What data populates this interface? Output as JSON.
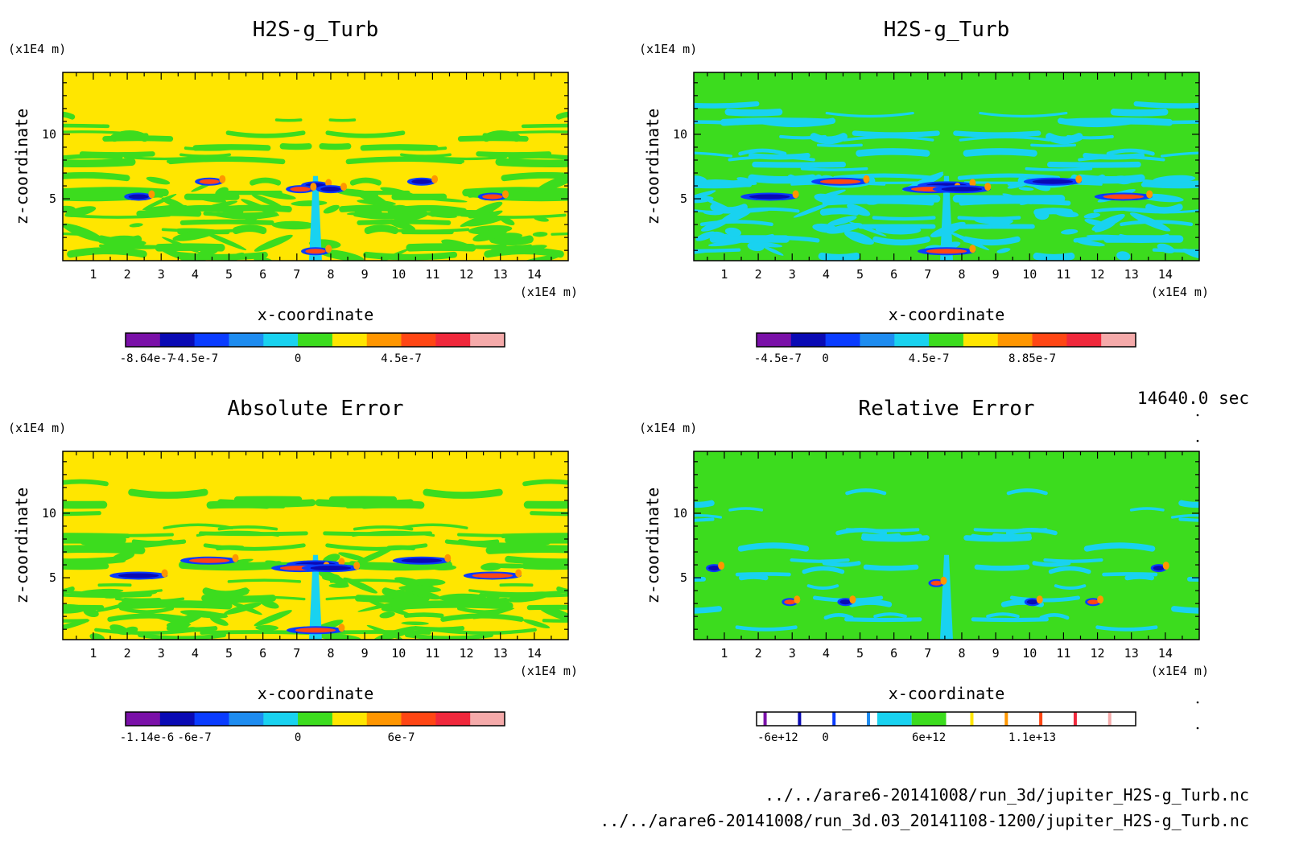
{
  "colors": {
    "palette": [
      "#7a10a8",
      "#0a0ab4",
      "#0a3cff",
      "#1e8cf0",
      "#19d2f0",
      "#3cdc1e",
      "#ffe600",
      "#ff9600",
      "#ff4614",
      "#f0283c",
      "#f5aaaa"
    ],
    "background_field": {
      "H2S-g_Turb (A)": "#ffe600",
      "H2S-g_Turb (B)": "#3cdc1e",
      "Absolute Error": "#ffe600",
      "Relative Error": "#3cdc1e"
    }
  },
  "time_label": "14640.0 sec",
  "files": [
    "../../arare6-20141008/run_3d/jupiter_H2S-g_Turb.nc",
    "../../arare6-20141008/run_3d.03_20141108-1200/jupiter_H2S-g_Turb.nc"
  ],
  "chart_data": [
    {
      "type": "heatmap",
      "title": "H2S-g_Turb",
      "xlabel": "x-coordinate",
      "ylabel": "z-coordinate",
      "x_unit": "(x1E4 m)",
      "y_unit": "(x1E4 m)",
      "xlim": [
        0.1,
        15
      ],
      "ylim": [
        0.2,
        14.8
      ],
      "x_ticks": [
        "1",
        "2",
        "3",
        "4",
        "5",
        "6",
        "7",
        "8",
        "9",
        "10",
        "11",
        "12",
        "13",
        "14"
      ],
      "y_ticks": [
        "5",
        "10"
      ],
      "colorbar": {
        "type": "filled",
        "levels": 11,
        "tick_labels": [
          "-8.64e-7",
          "-4.5e-7",
          "0",
          "4.5e-7"
        ]
      }
    },
    {
      "type": "heatmap",
      "title": "H2S-g_Turb",
      "xlabel": "x-coordinate",
      "ylabel": "z-coordinate",
      "x_unit": "(x1E4 m)",
      "y_unit": "(x1E4 m)",
      "xlim": [
        0.1,
        15
      ],
      "ylim": [
        0.2,
        14.8
      ],
      "x_ticks": [
        "1",
        "2",
        "3",
        "4",
        "5",
        "6",
        "7",
        "8",
        "9",
        "10",
        "11",
        "12",
        "13",
        "14"
      ],
      "y_ticks": [
        "5",
        "10"
      ],
      "colorbar": {
        "type": "filled",
        "levels": 11,
        "tick_labels": [
          "-4.5e-7",
          "0",
          "4.5e-7",
          "8.85e-7"
        ]
      }
    },
    {
      "type": "heatmap",
      "title": "Absolute Error",
      "xlabel": "x-coordinate",
      "ylabel": "z-coordinate",
      "x_unit": "(x1E4 m)",
      "y_unit": "(x1E4 m)",
      "xlim": [
        0.1,
        15
      ],
      "ylim": [
        0.2,
        14.8
      ],
      "x_ticks": [
        "1",
        "2",
        "3",
        "4",
        "5",
        "6",
        "7",
        "8",
        "9",
        "10",
        "11",
        "12",
        "13",
        "14"
      ],
      "y_ticks": [
        "5",
        "10"
      ],
      "colorbar": {
        "type": "filled",
        "levels": 11,
        "tick_labels": [
          "-1.14e-6",
          "-6e-7",
          "0",
          "6e-7"
        ]
      }
    },
    {
      "type": "heatmap",
      "title": "Relative Error",
      "xlabel": "x-coordinate",
      "ylabel": "z-coordinate",
      "x_unit": "(x1E4 m)",
      "y_unit": "(x1E4 m)",
      "xlim": [
        0.1,
        15
      ],
      "ylim": [
        0.2,
        14.8
      ],
      "x_ticks": [
        "1",
        "2",
        "3",
        "4",
        "5",
        "6",
        "7",
        "8",
        "9",
        "10",
        "11",
        "12",
        "13",
        "14"
      ],
      "y_ticks": [
        "5",
        "10"
      ],
      "colorbar": {
        "type": "lines",
        "levels": 11,
        "tick_labels": [
          "-6e+12",
          "0",
          "6e+12",
          "1.1e+13"
        ]
      }
    }
  ]
}
